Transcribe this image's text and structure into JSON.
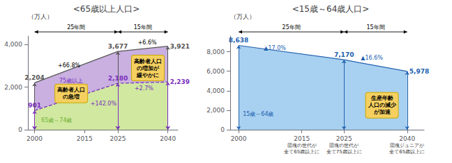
{
  "chart_data": [
    {
      "type": "area",
      "title": "<65歳以上人口>",
      "ylabel": "（万人）",
      "x": [
        2000,
        2025,
        2040
      ],
      "xlim": [
        1998,
        2043
      ],
      "xticks": [
        2000,
        2015,
        2025,
        2040
      ],
      "ylim": [
        0,
        4400
      ],
      "yticks": [
        0,
        {
          "value": 2000,
          "label": "2,000"
        },
        {
          "value": 4000,
          "label": "4,000"
        }
      ],
      "grid": false,
      "data_labels": true,
      "series": [
        {
          "color": "#555555",
          "fill_color": "#c9b0e0",
          "values": [
            2204,
            3677,
            3921
          ],
          "value_labels": [
            "2,204",
            "3,677",
            "3,921"
          ]
        },
        {
          "color": "#7b2fbe",
          "fill_color": "#d0e8a0",
          "line_style": "dashed",
          "values": [
            901,
            2180,
            2239
          ],
          "value_labels": [
            "901",
            "2,180",
            "2,239"
          ]
        }
      ],
      "spans": [
        "25年間",
        "15年間"
      ],
      "annotations": [
        {
          "text": "+142.0%",
          "color": "#7b2fbe"
        },
        {
          "text": "+66.8%",
          "color": "#000000"
        },
        {
          "text": "+2.7%",
          "color": "#7b2fbe"
        },
        {
          "text": "+6.6%",
          "color": "#000000"
        },
        {
          "text": "75歳以上",
          "color": "#7b2fbe"
        },
        {
          "text": "65歳～74歳",
          "color": "#70b030"
        }
      ],
      "boxes": [
        "高齢者人口\nの急増",
        "高齢者人口\nの増加が\n緩やかに"
      ],
      "box_color": "#f5d060",
      "box_edge_color": "#c8a800"
    },
    {
      "type": "area",
      "title": "<15歳～64歳人口>",
      "ylabel": "（万人）",
      "x": [
        2000,
        2025,
        2040
      ],
      "xlim": [
        1998,
        2044
      ],
      "xticks": [
        2000,
        2015,
        2025,
        2040
      ],
      "ylim": [
        0,
        9600
      ],
      "yticks": [
        0,
        {
          "value": 2000,
          "label": "2,000"
        },
        {
          "value": 4000,
          "label": "4,000"
        },
        {
          "value": 6000,
          "label": "6,000"
        },
        {
          "value": 8000,
          "label": "8,000"
        }
      ],
      "grid": false,
      "data_labels": true,
      "series": [
        {
          "color": "#2060b0",
          "fill_color": "#a8d0f0",
          "values": [
            8638,
            7170,
            5978
          ],
          "value_labels": [
            "8,638",
            "7,170",
            "5,978"
          ]
        }
      ],
      "spans": [
        "25年間",
        "15年間"
      ],
      "annotations": [
        {
          "text": "▲17.0%",
          "color": "#2060b0"
        },
        {
          "text": "▲16.6%",
          "color": "#2060b0"
        },
        {
          "text": "15歳～64歳",
          "color": "#2060b0"
        }
      ],
      "boxes": [
        "生産年齢\n人口の減少\nが加速"
      ],
      "box_color": "#f5d060",
      "box_edge_color": "#c8a800",
      "tick_notes": [
        {
          "x": 2015,
          "text": "団塊の世代が\n全て65歳以上に"
        },
        {
          "x": 2025,
          "text": "団塊の世代が\n全て75歳以上に"
        },
        {
          "x": 2040,
          "text": "団塊ジュニアが\n全て65歳以上に"
        }
      ]
    }
  ]
}
